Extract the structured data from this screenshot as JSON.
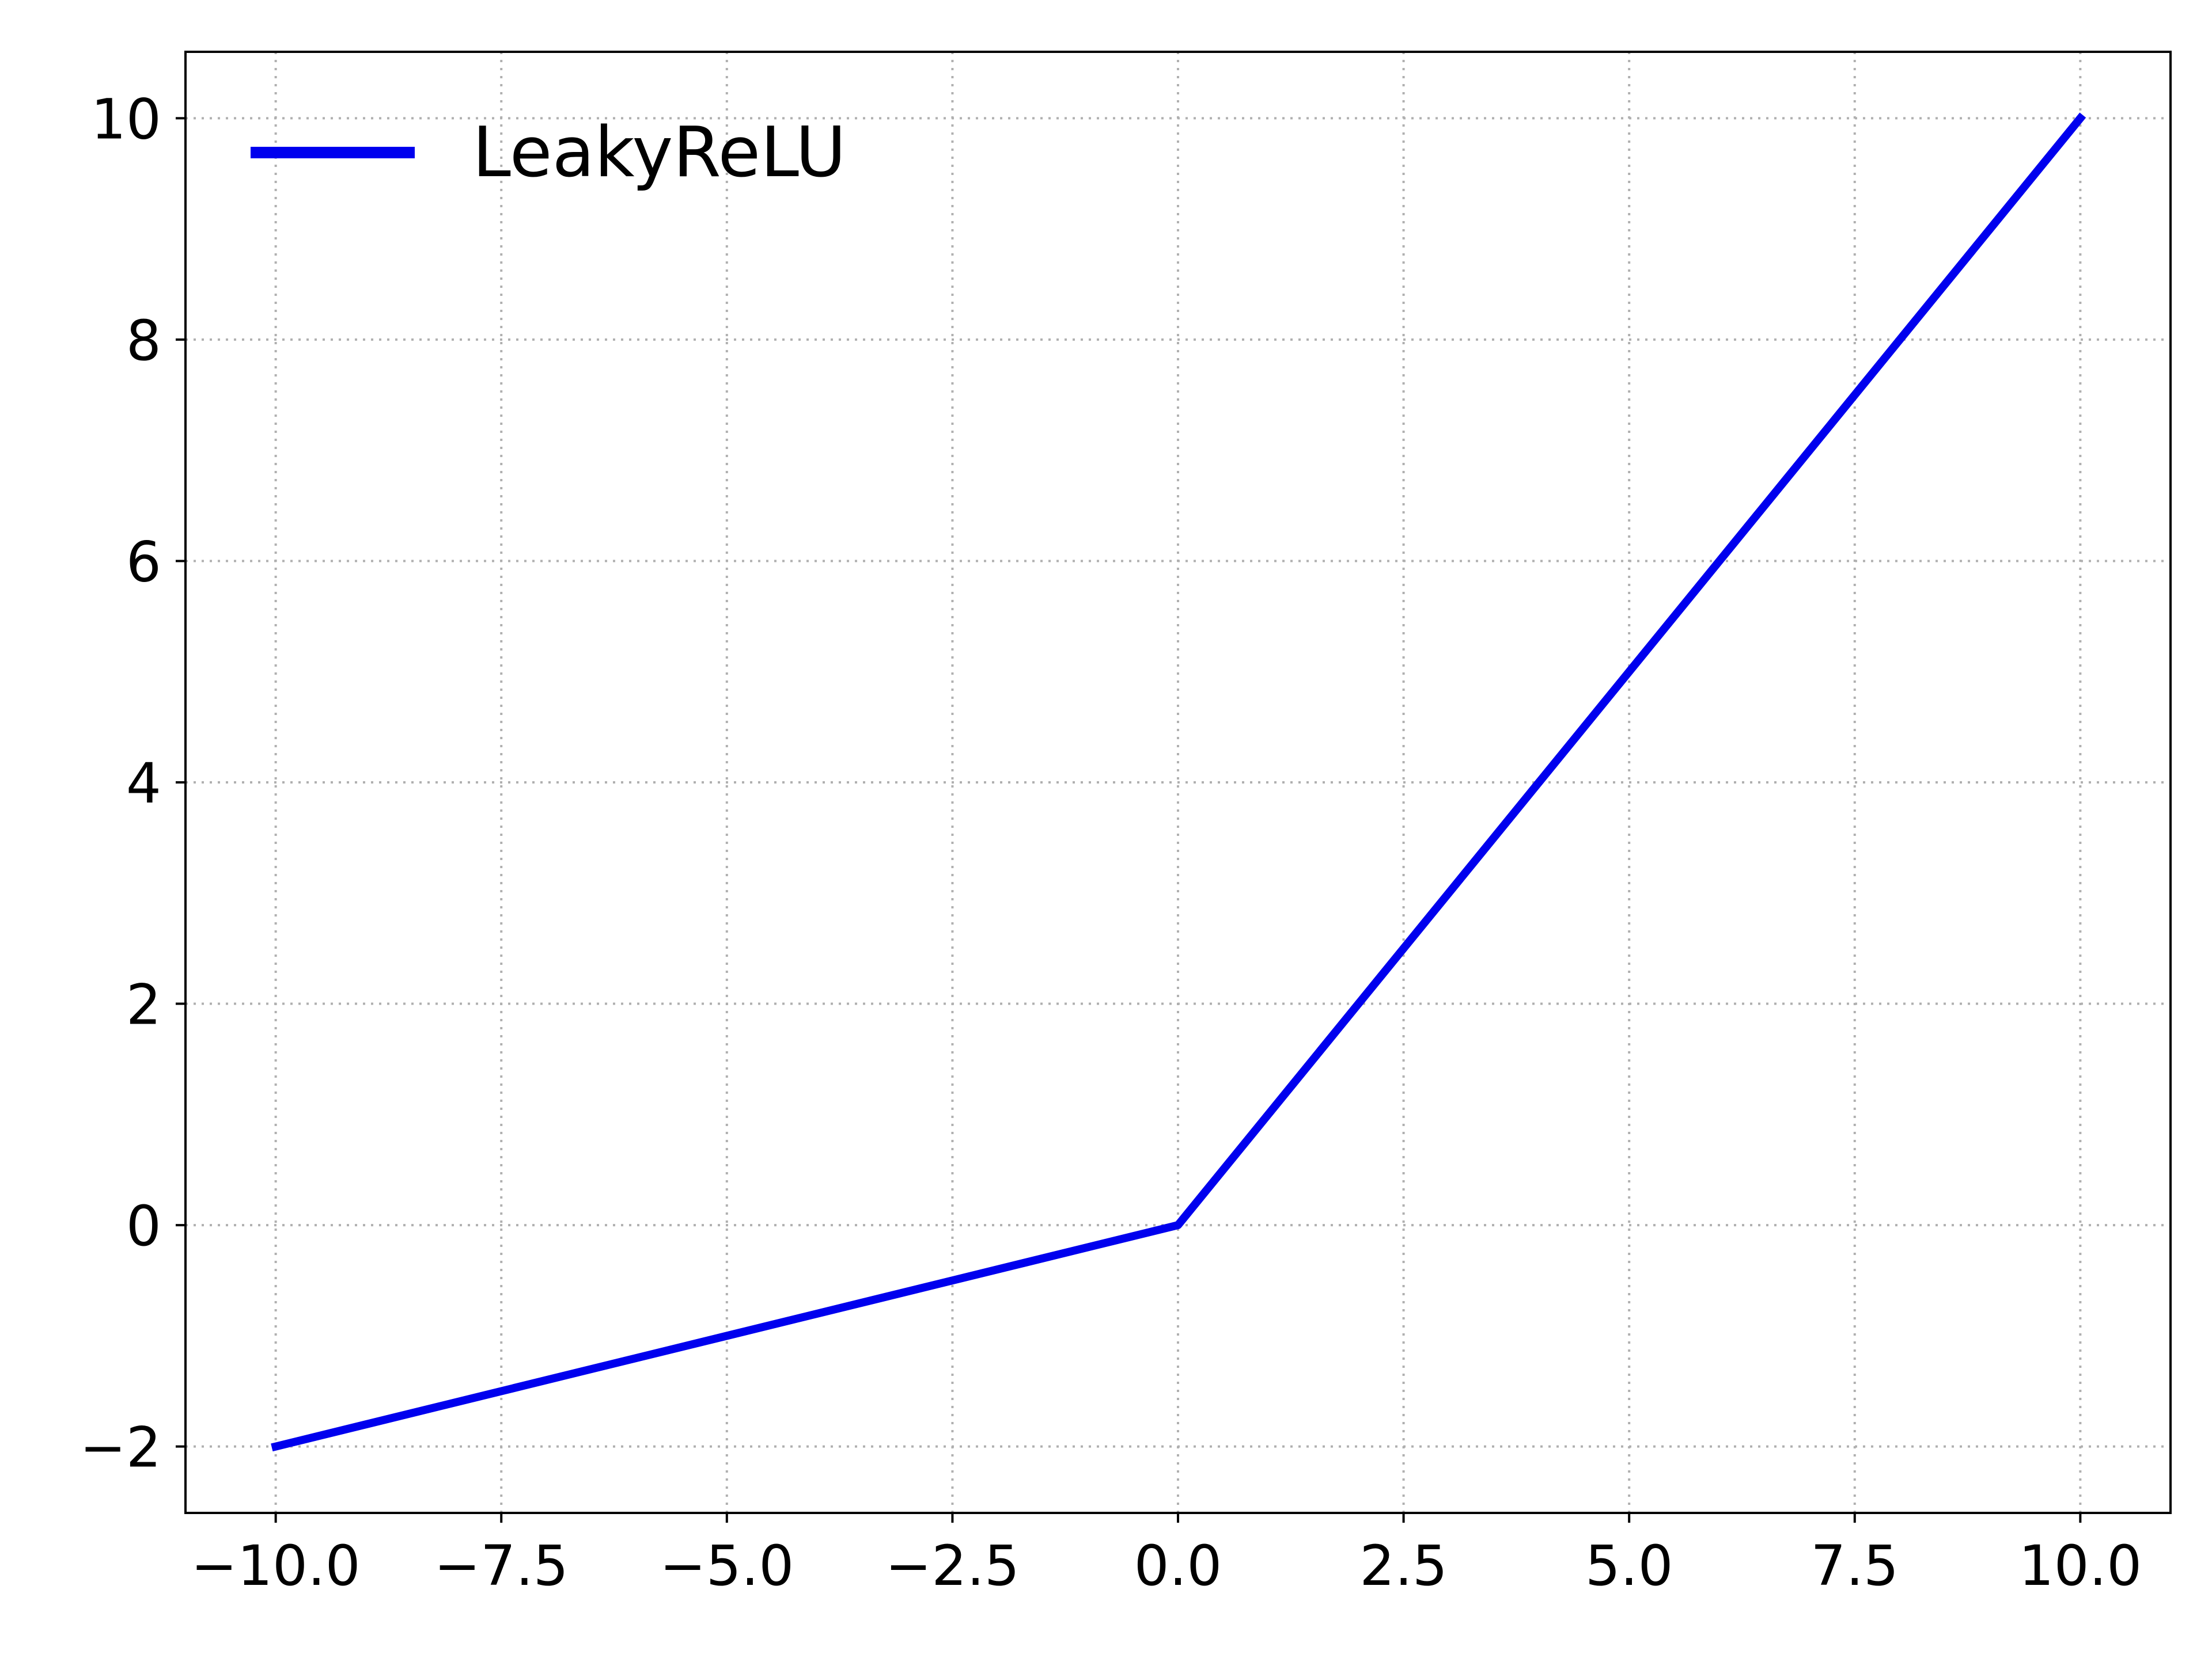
{
  "chart_data": {
    "type": "line",
    "title": "",
    "xlabel": "",
    "ylabel": "",
    "xlim": [
      -11,
      11
    ],
    "ylim": [
      -2.6,
      10.6
    ],
    "xticks": [
      -10,
      -7.5,
      -5,
      -2.5,
      0,
      2.5,
      5,
      7.5,
      10
    ],
    "xtick_labels": [
      "−10.0",
      "−7.5",
      "−5.0",
      "−2.5",
      "0.0",
      "2.5",
      "5.0",
      "7.5",
      "10.0"
    ],
    "yticks": [
      -2,
      0,
      2,
      4,
      6,
      8,
      10
    ],
    "ytick_labels": [
      "−2",
      "0",
      "2",
      "4",
      "6",
      "8",
      "10"
    ],
    "grid": true,
    "legend": {
      "placement": "top-left",
      "entries": [
        "LeakyReLU"
      ]
    },
    "series": [
      {
        "name": "LeakyReLU",
        "color": "#0000ee",
        "x": [
          -10,
          0,
          10
        ],
        "y": [
          -2,
          0,
          10
        ]
      }
    ]
  }
}
